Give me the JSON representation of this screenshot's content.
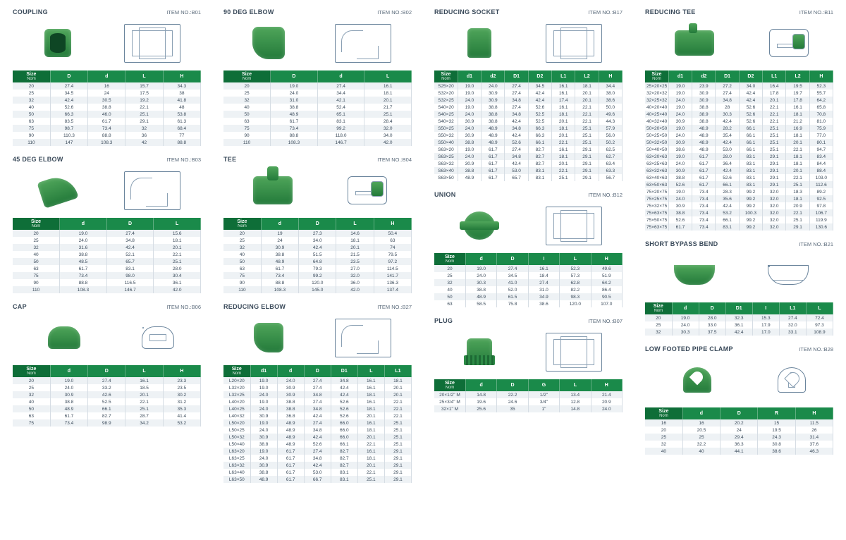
{
  "colors": {
    "header_bg": "#1a8a4a",
    "header_bg_first": "#0e6e38",
    "row_alt": "#eef2f5",
    "text": "#3a4a5a",
    "product_green": "#2e8b47"
  },
  "typography": {
    "title_fontsize": 9,
    "cell_fontsize": 6.5,
    "header_fontsize": 7
  },
  "label_itemno_prefix": "ITEM NO.:",
  "header_size": "Size",
  "header_nom": "Nom",
  "sections": {
    "coupling": {
      "title": "COUPLING",
      "item_no": "B01",
      "columns": [
        "D",
        "d",
        "L",
        "H"
      ],
      "rows": [
        [
          "20",
          "27.4",
          "16",
          "15.7",
          "34.3"
        ],
        [
          "25",
          "34.5",
          "24",
          "17.5",
          "38"
        ],
        [
          "32",
          "42.4",
          "30.5",
          "19.2",
          "41.8"
        ],
        [
          "40",
          "52.6",
          "38.8",
          "22.1",
          "48"
        ],
        [
          "50",
          "66.3",
          "46.0",
          "25.1",
          "53.8"
        ],
        [
          "63",
          "83.5",
          "61.7",
          "29.1",
          "61.3"
        ],
        [
          "75",
          "98.7",
          "73.4",
          "32",
          "68.4"
        ],
        [
          "90",
          "110.3",
          "88.8",
          "36",
          "77"
        ],
        [
          "110",
          "147",
          "108.3",
          "42",
          "88.8"
        ]
      ]
    },
    "elbow45": {
      "title": "45 DEG ELBOW",
      "item_no": "B03",
      "columns": [
        "d",
        "D",
        "L"
      ],
      "rows": [
        [
          "20",
          "19.0",
          "27.4",
          "15.6"
        ],
        [
          "25",
          "24.0",
          "34.8",
          "18.1"
        ],
        [
          "32",
          "31.6",
          "42.4",
          "20.1"
        ],
        [
          "40",
          "38.8",
          "52.1",
          "22.1"
        ],
        [
          "50",
          "48.5",
          "65.7",
          "25.1"
        ],
        [
          "63",
          "61.7",
          "83.1",
          "28.0"
        ],
        [
          "75",
          "73.4",
          "98.0",
          "30.4"
        ],
        [
          "90",
          "88.8",
          "116.5",
          "36.1"
        ],
        [
          "110",
          "108.3",
          "146.7",
          "42.0"
        ]
      ]
    },
    "cap": {
      "title": "CAP",
      "item_no": "B06",
      "columns": [
        "d",
        "D",
        "L",
        "H"
      ],
      "rows": [
        [
          "20",
          "19.0",
          "27.4",
          "16.1",
          "23.3"
        ],
        [
          "25",
          "24.0",
          "33.2",
          "18.5",
          "23.5"
        ],
        [
          "32",
          "30.9",
          "42.6",
          "20.1",
          "30.2"
        ],
        [
          "40",
          "38.8",
          "52.5",
          "22.1",
          "31.2"
        ],
        [
          "50",
          "48.9",
          "66.1",
          "25.1",
          "35.3"
        ],
        [
          "63",
          "61.7",
          "82.7",
          "28.7",
          "41.4"
        ],
        [
          "75",
          "73.4",
          "98.9",
          "34.2",
          "53.2"
        ]
      ]
    },
    "elbow90": {
      "title": "90 DEG ELBOW",
      "item_no": "B02",
      "columns": [
        "D",
        "d",
        "L"
      ],
      "rows": [
        [
          "20",
          "19.0",
          "27.4",
          "16.1"
        ],
        [
          "25",
          "24.0",
          "34.4",
          "18.1"
        ],
        [
          "32",
          "31.0",
          "42.1",
          "20.1"
        ],
        [
          "40",
          "38.8",
          "52.4",
          "21.7"
        ],
        [
          "50",
          "48.9",
          "65.1",
          "25.1"
        ],
        [
          "63",
          "61.7",
          "83.1",
          "28.4"
        ],
        [
          "75",
          "73.4",
          "99.2",
          "32.0"
        ],
        [
          "90",
          "88.8",
          "118.0",
          "34.0"
        ],
        [
          "110",
          "108.3",
          "146.7",
          "42.0"
        ]
      ]
    },
    "tee": {
      "title": "TEE",
      "item_no": "B04",
      "columns": [
        "d",
        "D",
        "L",
        "H"
      ],
      "rows": [
        [
          "20",
          "19",
          "27.3",
          "14.6",
          "50.4"
        ],
        [
          "25",
          "24",
          "34.0",
          "18.1",
          "63"
        ],
        [
          "32",
          "30.9",
          "42.4",
          "20.1",
          "74"
        ],
        [
          "40",
          "38.8",
          "51.5",
          "21.5",
          "79.5"
        ],
        [
          "50",
          "48.9",
          "64.8",
          "23.5",
          "97.2"
        ],
        [
          "63",
          "61.7",
          "79.3",
          "27.0",
          "114.5"
        ],
        [
          "75",
          "73.4",
          "99.2",
          "32.0",
          "141.7"
        ],
        [
          "90",
          "88.8",
          "120.0",
          "36.0",
          "136.3"
        ],
        [
          "110",
          "108.3",
          "145.0",
          "42.0",
          "137.4"
        ]
      ]
    },
    "redelbow": {
      "title": "REDUCING ELBOW",
      "item_no": "B27",
      "columns": [
        "d1",
        "d",
        "D",
        "D1",
        "L",
        "L1"
      ],
      "rows": [
        [
          "L20×20",
          "19.0",
          "24.0",
          "27.4",
          "34.8",
          "16.1",
          "18.1"
        ],
        [
          "L32×20",
          "19.0",
          "30.9",
          "27.4",
          "42.4",
          "16.1",
          "20.1"
        ],
        [
          "L32×25",
          "24.0",
          "30.9",
          "34.8",
          "42.4",
          "18.1",
          "20.1"
        ],
        [
          "L40×20",
          "19.0",
          "38.8",
          "27.4",
          "52.6",
          "16.1",
          "22.1"
        ],
        [
          "L40×25",
          "24.0",
          "38.8",
          "34.8",
          "52.6",
          "18.1",
          "22.1"
        ],
        [
          "L40×32",
          "30.9",
          "36.8",
          "42.4",
          "52.6",
          "20.1",
          "22.1"
        ],
        [
          "L50×20",
          "19.0",
          "48.9",
          "27.4",
          "66.0",
          "16.1",
          "25.1"
        ],
        [
          "L50×25",
          "24.0",
          "48.9",
          "34.8",
          "66.0",
          "18.1",
          "25.1"
        ],
        [
          "L50×32",
          "30.9",
          "48.9",
          "42.4",
          "66.0",
          "20.1",
          "25.1"
        ],
        [
          "L50×40",
          "38.8",
          "48.9",
          "52.6",
          "66.1",
          "22.1",
          "25.1"
        ],
        [
          "L63×20",
          "19.0",
          "61.7",
          "27.4",
          "82.7",
          "16.1",
          "29.1"
        ],
        [
          "L63×25",
          "24.0",
          "61.7",
          "34.8",
          "82.7",
          "18.1",
          "29.1"
        ],
        [
          "L63×32",
          "30.9",
          "61.7",
          "42.4",
          "82.7",
          "20.1",
          "29.1"
        ],
        [
          "L63×40",
          "38.8",
          "61.7",
          "53.0",
          "83.1",
          "22.1",
          "29.1"
        ],
        [
          "L63×50",
          "48.9",
          "61.7",
          "66.7",
          "83.1",
          "25.1",
          "29.1"
        ]
      ]
    },
    "redsocket": {
      "title": "REDUCING SOCKET",
      "item_no": "B17",
      "columns": [
        "d1",
        "d2",
        "D1",
        "D2",
        "L1",
        "L2",
        "H"
      ],
      "rows": [
        [
          "S25×20",
          "19.0",
          "24.0",
          "27.4",
          "34.5",
          "16.1",
          "18.1",
          "34.4"
        ],
        [
          "S32×20",
          "19.0",
          "30.9",
          "27.4",
          "42.4",
          "16.1",
          "20.1",
          "38.0"
        ],
        [
          "S32×25",
          "24.0",
          "30.9",
          "34.8",
          "42.4",
          "17.4",
          "20.1",
          "38.6"
        ],
        [
          "S40×20",
          "19.0",
          "38.8",
          "27.4",
          "52.6",
          "16.1",
          "22.1",
          "50.0"
        ],
        [
          "S40×25",
          "24.0",
          "38.8",
          "34.8",
          "52.5",
          "18.1",
          "22.1",
          "49.6"
        ],
        [
          "S40×32",
          "30.9",
          "38.8",
          "42.4",
          "52.5",
          "20.1",
          "22.1",
          "44.3"
        ],
        [
          "S50×25",
          "24.0",
          "48.9",
          "34.8",
          "66.3",
          "18.1",
          "25.1",
          "57.9"
        ],
        [
          "S50×32",
          "30.9",
          "48.9",
          "42.4",
          "66.3",
          "20.1",
          "25.1",
          "56.0"
        ],
        [
          "S50×40",
          "38.8",
          "48.9",
          "52.6",
          "66.1",
          "22.1",
          "25.1",
          "50.2"
        ],
        [
          "S63×20",
          "19.0",
          "61.7",
          "27.4",
          "82.7",
          "16.1",
          "29.1",
          "62.5"
        ],
        [
          "S63×25",
          "24.0",
          "61.7",
          "34.8",
          "82.7",
          "18.1",
          "29.1",
          "62.7"
        ],
        [
          "S63×32",
          "30.9",
          "61.7",
          "42.4",
          "82.7",
          "20.1",
          "29.1",
          "63.4"
        ],
        [
          "S63×40",
          "38.8",
          "61.7",
          "53.0",
          "83.1",
          "22.1",
          "29.1",
          "63.3"
        ],
        [
          "S63×50",
          "48.9",
          "61.7",
          "65.7",
          "83.1",
          "25.1",
          "29.1",
          "56.7"
        ]
      ]
    },
    "union": {
      "title": "UNION",
      "item_no": "B12",
      "columns": [
        "d",
        "D",
        "I",
        "L",
        "H"
      ],
      "rows": [
        [
          "20",
          "19.0",
          "27.4",
          "16.1",
          "52.3",
          "49.6"
        ],
        [
          "25",
          "24.0",
          "34.5",
          "18.4",
          "57.3",
          "51.9"
        ],
        [
          "32",
          "30.3",
          "41.0",
          "27.4",
          "62.8",
          "64.2"
        ],
        [
          "40",
          "38.8",
          "52.0",
          "31.0",
          "82.2",
          "86.4"
        ],
        [
          "50",
          "48.9",
          "61.5",
          "34.9",
          "98.3",
          "90.5"
        ],
        [
          "63",
          "58.5",
          "75.8",
          "38.6",
          "120.0",
          "107.0"
        ]
      ]
    },
    "plug": {
      "title": "PLUG",
      "item_no": "B07",
      "columns": [
        "d",
        "D",
        "G",
        "L",
        "H"
      ],
      "rows": [
        [
          "20×1/2\" M",
          "14.8",
          "22.2",
          "1/2\"",
          "13.4",
          "21.4"
        ],
        [
          "25×3/4\" M",
          "19.6",
          "24.6",
          "3/4\"",
          "12.8",
          "20.9"
        ],
        [
          "32×1\" M",
          "25.6",
          "35",
          "1\"",
          "14.8",
          "24.0"
        ]
      ]
    },
    "redtee": {
      "title": "REDUCING TEE",
      "item_no": "B11",
      "columns": [
        "d1",
        "d2",
        "D1",
        "D2",
        "L1",
        "L2",
        "H"
      ],
      "rows": [
        [
          "25×20×25",
          "19.0",
          "23.9",
          "27.2",
          "34.0",
          "16.4",
          "19.5",
          "52.3"
        ],
        [
          "32×20×32",
          "19.0",
          "30.9",
          "27.4",
          "42.4",
          "17.8",
          "19.7",
          "55.7"
        ],
        [
          "32×25×32",
          "24.0",
          "30.9",
          "34.8",
          "42.4",
          "20.1",
          "17.8",
          "64.2"
        ],
        [
          "40×20×40",
          "19.0",
          "38.8",
          "28",
          "52.6",
          "22.1",
          "16.1",
          "65.8"
        ],
        [
          "40×25×40",
          "24.0",
          "38.9",
          "30.3",
          "52.6",
          "22.1",
          "18.1",
          "70.8"
        ],
        [
          "40×32×40",
          "30.9",
          "38.8",
          "42.4",
          "52.6",
          "22.1",
          "21.2",
          "81.0"
        ],
        [
          "50×20×50",
          "19.0",
          "48.9",
          "28.2",
          "66.1",
          "25.1",
          "16.9",
          "75.9"
        ],
        [
          "50×25×50",
          "24.0",
          "48.9",
          "35.4",
          "66.1",
          "25.1",
          "18.1",
          "77.0"
        ],
        [
          "50×32×50",
          "30.9",
          "48.9",
          "42.4",
          "66.1",
          "25.1",
          "20.1",
          "80.1"
        ],
        [
          "50×40×50",
          "38.6",
          "48.9",
          "53.0",
          "66.1",
          "25.1",
          "22.1",
          "94.7"
        ],
        [
          "63×20×63",
          "19.0",
          "61.7",
          "28.0",
          "83.1",
          "29.1",
          "18.1",
          "83.4"
        ],
        [
          "63×25×63",
          "24.0",
          "61.7",
          "36.4",
          "83.1",
          "29.1",
          "18.1",
          "84.4"
        ],
        [
          "63×32×63",
          "30.9",
          "61.7",
          "42.4",
          "83.1",
          "29.1",
          "20.1",
          "88.4"
        ],
        [
          "63×40×63",
          "38.8",
          "61.7",
          "52.6",
          "83.1",
          "29.1",
          "22.1",
          "103.0"
        ],
        [
          "63×50×63",
          "52.6",
          "61.7",
          "66.1",
          "83.1",
          "29.1",
          "25.1",
          "112.6"
        ],
        [
          "75×20×75",
          "19.0",
          "73.4",
          "28.3",
          "99.2",
          "32.0",
          "18.3",
          "89.2"
        ],
        [
          "75×25×75",
          "24.0",
          "73.4",
          "35.6",
          "99.2",
          "32.0",
          "18.1",
          "92.5"
        ],
        [
          "75×32×75",
          "30.9",
          "73.4",
          "42.4",
          "99.2",
          "32.0",
          "20.9",
          "97.8"
        ],
        [
          "75×63×75",
          "38.8",
          "73.4",
          "53.2",
          "100.3",
          "32.0",
          "22.1",
          "106.7"
        ],
        [
          "75×50×75",
          "52.6",
          "73.4",
          "66.1",
          "99.2",
          "32.0",
          "25.1",
          "119.9"
        ],
        [
          "75×63×75",
          "61.7",
          "73.4",
          "83.1",
          "99.2",
          "32.0",
          "29.1",
          "130.6"
        ]
      ]
    },
    "bypass": {
      "title": "SHORT BYPASS BEND",
      "item_no": "B21",
      "columns": [
        "d",
        "D",
        "D1",
        "I",
        "L1",
        "L"
      ],
      "rows": [
        [
          "20",
          "19.0",
          "28.0",
          "32.3",
          "15.3",
          "27.4",
          "72.4"
        ],
        [
          "25",
          "24.0",
          "33.0",
          "36.1",
          "17.9",
          "32.0",
          "97.3"
        ],
        [
          "32",
          "30.3",
          "37.5",
          "42.4",
          "17.0",
          "33.1",
          "108.9"
        ]
      ]
    },
    "clamp": {
      "title": "LOW FOOTED PIPE CLAMP",
      "item_no": "B28",
      "columns": [
        "d",
        "D",
        "R",
        "H"
      ],
      "rows": [
        [
          "16",
          "16",
          "20.2",
          "15",
          "11.5"
        ],
        [
          "20",
          "20.5",
          "24",
          "19.5",
          "26"
        ],
        [
          "25",
          "25",
          "29.4",
          "24.3",
          "31.4"
        ],
        [
          "32",
          "32.2",
          "36.3",
          "30.8",
          "37.6"
        ],
        [
          "40",
          "40",
          "44.1",
          "38.6",
          "46.3"
        ]
      ]
    }
  }
}
